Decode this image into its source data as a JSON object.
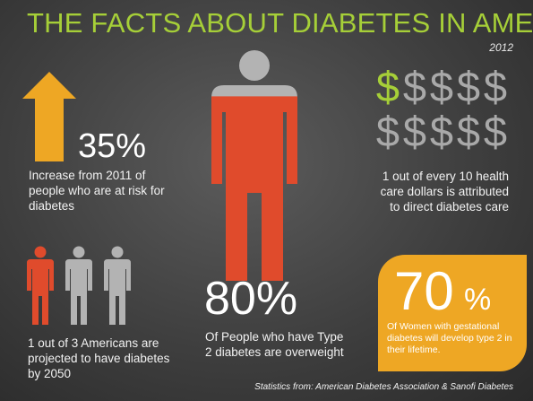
{
  "title": "THE FACTS ABOUT DIABETES IN AMERICA",
  "year": "2012",
  "colors": {
    "title_green": "#a6cf38",
    "arrow_orange": "#eea724",
    "figure_red": "#e04b2c",
    "figure_gray": "#b3b3b3",
    "box_orange": "#eea724"
  },
  "stat_risk": {
    "icon": "up-arrow-icon",
    "value": "35%",
    "description": "Increase from 2011 of people who are at risk for diabetes"
  },
  "stat_projection": {
    "icon": "people-icon",
    "highlighted_of_total": [
      1,
      3
    ],
    "description": "1 out of 3 Americans are projected to have diabetes by 2050"
  },
  "stat_overweight": {
    "icon": "person-icon",
    "fill_fraction": 0.8,
    "value": "80%",
    "description": "Of People who have Type 2 diabetes are overweight"
  },
  "stat_dollars": {
    "icon": "dollar-sign-icon",
    "highlighted_of_total": [
      1,
      10
    ],
    "description": "1 out of every 10 health care dollars is attributed to direct diabetes care"
  },
  "stat_gestational": {
    "value": "70",
    "percent_sign": "%",
    "description": "Of Women with gestational diabetes will develop type 2 in their lifetime."
  },
  "footer": "Statistics from: American Diabetes Association & Sanofi Diabetes"
}
